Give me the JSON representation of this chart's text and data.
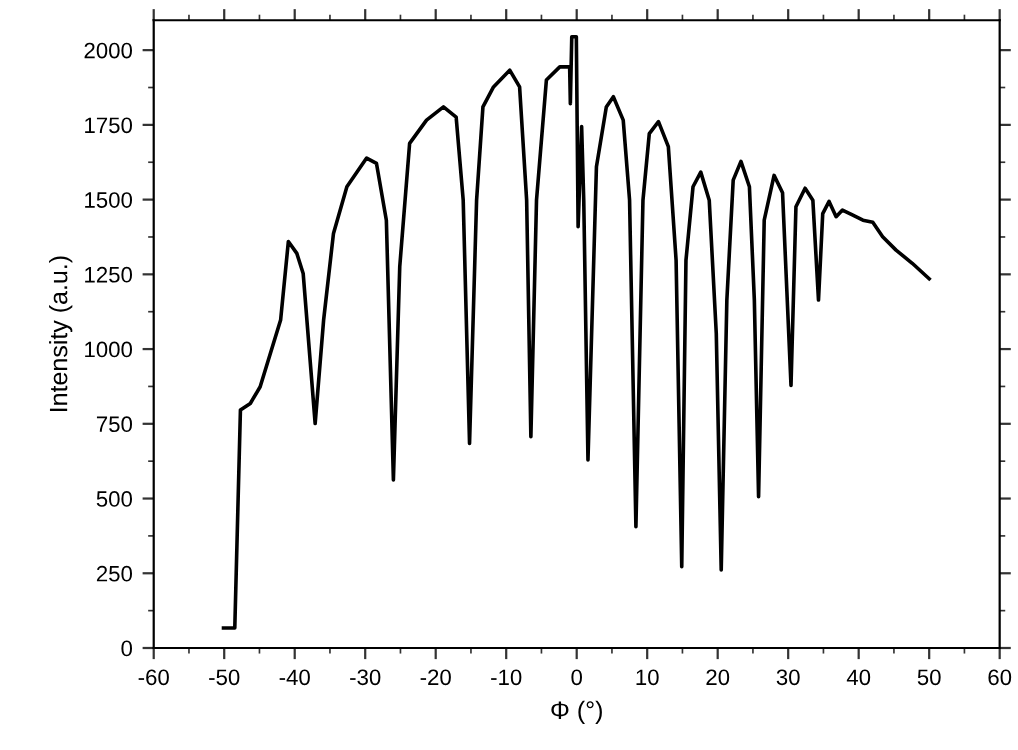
{
  "chart_data": {
    "type": "line",
    "xlabel": "Φ (°)",
    "ylabel": "Intensity (a.u.)",
    "xlim": [
      -60,
      60
    ],
    "xticks": [
      -60,
      -50,
      -40,
      -30,
      -20,
      -10,
      0,
      10,
      20,
      30,
      40,
      50,
      60
    ],
    "ylim": [
      0,
      2100
    ],
    "yticks": [
      0,
      250,
      500,
      750,
      1000,
      1250,
      1500,
      1750,
      2000
    ],
    "marker": "none",
    "line_style": "solid",
    "series": [
      {
        "color": "#000000",
        "x": [
          -50.1,
          -48.5,
          -47.7,
          -46.3,
          -44.9,
          -42.0,
          -40.9,
          -39.7,
          -38.8,
          -37.1,
          -35.9,
          -34.5,
          -32.6,
          -29.8,
          -28.4,
          -27.0,
          -26.0,
          -25.1,
          -23.7,
          -21.3,
          -18.9,
          -17.1,
          -16.1,
          -15.2,
          -14.2,
          -13.3,
          -11.8,
          -9.5,
          -8.1,
          -7.1,
          -6.5,
          -5.7,
          -4.3,
          -2.4,
          -1.0,
          -0.9,
          -0.7,
          -0.05,
          0.2,
          0.7,
          1.0,
          1.6,
          2.8,
          4.2,
          5.2,
          6.6,
          7.5,
          8.4,
          9.4,
          10.3,
          11.6,
          13.0,
          14.1,
          14.9,
          15.5,
          16.5,
          17.6,
          18.8,
          19.8,
          20.5,
          21.3,
          22.2,
          23.3,
          24.5,
          25.2,
          25.8,
          26.6,
          28.0,
          29.2,
          30.4,
          31.1,
          32.4,
          33.5,
          34.3,
          34.9,
          35.8,
          36.8,
          37.7,
          39.1,
          40.6,
          42.0,
          43.4,
          45.3,
          47.6,
          50.0
        ],
        "values": [
          67,
          67,
          796,
          818,
          874,
          1097,
          1360,
          1320,
          1253,
          751,
          1097,
          1387,
          1543,
          1639,
          1621,
          1431,
          562,
          1276,
          1688,
          1766,
          1810,
          1776,
          1498,
          684,
          1498,
          1810,
          1877,
          1933,
          1877,
          1498,
          707,
          1498,
          1900,
          1944,
          1944,
          1821,
          2045,
          2045,
          1409,
          1744,
          1498,
          629,
          1610,
          1810,
          1844,
          1766,
          1498,
          406,
          1498,
          1721,
          1761,
          1677,
          1297,
          272,
          1297,
          1543,
          1592,
          1498,
          1052,
          261,
          1164,
          1565,
          1628,
          1543,
          1164,
          506,
          1431,
          1581,
          1523,
          878,
          1476,
          1538,
          1498,
          1164,
          1453,
          1494,
          1443,
          1465,
          1449,
          1431,
          1424,
          1376,
          1331,
          1287,
          1235
        ]
      }
    ]
  }
}
